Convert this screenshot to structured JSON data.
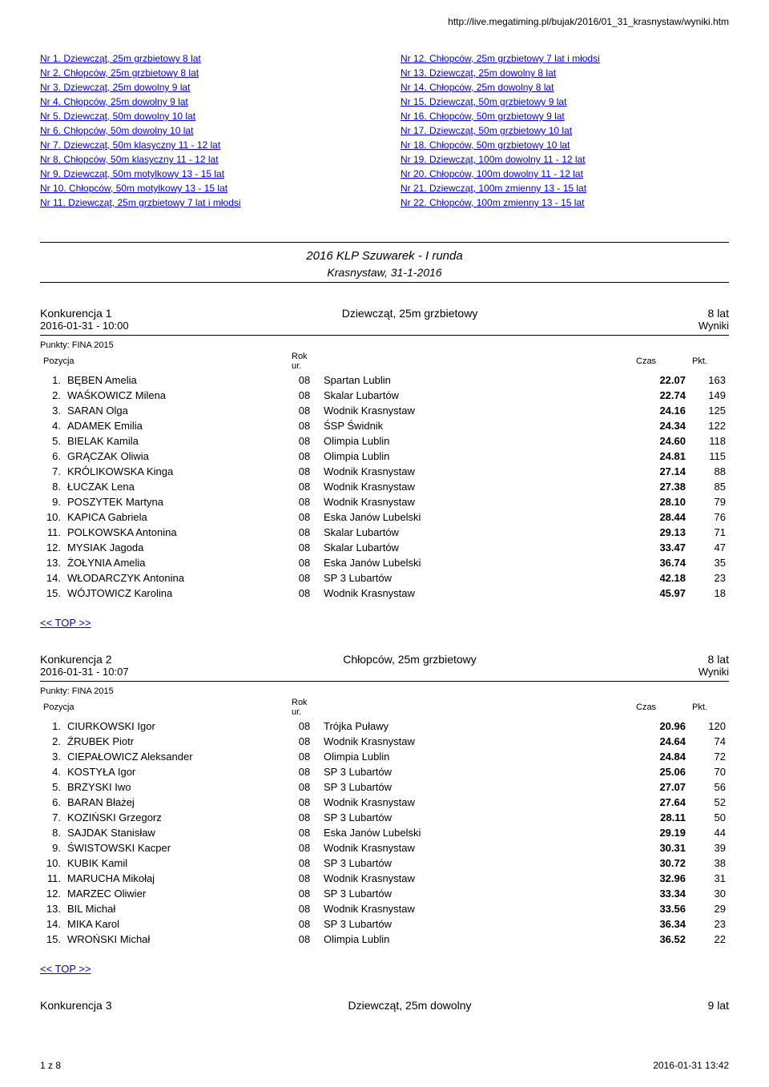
{
  "url": "http://live.megatiming.pl/bujak/2016/01_31_krasnystaw/wyniki.htm",
  "nav_left": [
    "Nr  1. Dziewcząt, 25m grzbietowy  8 lat",
    "Nr  2. Chłopców, 25m grzbietowy  8 lat",
    "Nr  3. Dziewcząt, 25m dowolny  9 lat",
    "Nr  4. Chłopców, 25m dowolny  9 lat",
    "Nr  5. Dziewcząt, 50m dowolny  10 lat",
    "Nr  6. Chłopców, 50m dowolny  10 lat",
    "Nr  7. Dziewcząt, 50m klasyczny  11 - 12 lat",
    "Nr  8. Chłopców, 50m klasyczny  11 - 12 lat",
    "Nr  9. Dziewcząt, 50m motylkowy  13 - 15 lat",
    "Nr 10. Chłopców, 50m motylkowy  13 - 15 lat",
    "Nr 11. Dziewcząt, 25m grzbietowy  7 lat i młodsi"
  ],
  "nav_right": [
    "Nr 12. Chłopców, 25m grzbietowy  7 lat i młodsi",
    "Nr 13. Dziewcząt, 25m dowolny  8 lat",
    "Nr 14. Chłopców, 25m dowolny  8 lat",
    "Nr 15. Dziewcząt, 50m grzbietowy  9 lat",
    "Nr 16. Chłopców, 50m grzbietowy  9 lat",
    "Nr 17. Dziewcząt, 50m grzbietowy  10 lat",
    "Nr 18. Chłopców, 50m grzbietowy  10 lat",
    "Nr 19. Dziewcząt, 100m dowolny  11 - 12 lat",
    "Nr 20. Chłopców, 100m dowolny  11 - 12 lat",
    "Nr 21. Dziewcząt, 100m zmienny  13 - 15 lat",
    "Nr 22. Chłopców, 100m zmienny  13 - 15 lat"
  ],
  "event_title": "2016 KLP Szuwarek - I runda",
  "event_date": "Krasnystaw, 31-1-2016",
  "points_label": "Punkty: FINA 2015",
  "col_pos": "Pozycja",
  "col_year": "Rok ur.",
  "col_time": "Czas",
  "col_pkt": "Pkt.",
  "top_link": "<< TOP >>",
  "k1": {
    "left": "Konkurencja 1",
    "mid": "Dziewcząt, 25m grzbietowy",
    "right": "8 lat",
    "time": "2016-01-31 - 10:00",
    "wyniki": "Wyniki",
    "rows": [
      {
        "pos": "1.",
        "name": "BĘBEN Amelia",
        "year": "08",
        "club": "Spartan Lublin",
        "time": "22.07",
        "pkt": "163"
      },
      {
        "pos": "2.",
        "name": "WAŚKOWICZ Milena",
        "year": "08",
        "club": "Skalar Lubartów",
        "time": "22.74",
        "pkt": "149"
      },
      {
        "pos": "3.",
        "name": "SARAN Olga",
        "year": "08",
        "club": "Wodnik Krasnystaw",
        "time": "24.16",
        "pkt": "125"
      },
      {
        "pos": "4.",
        "name": "ADAMEK Emilia",
        "year": "08",
        "club": "ŚSP Świdnik",
        "time": "24.34",
        "pkt": "122"
      },
      {
        "pos": "5.",
        "name": "BIELAK Kamila",
        "year": "08",
        "club": "Olimpia Lublin",
        "time": "24.60",
        "pkt": "118"
      },
      {
        "pos": "6.",
        "name": "GRĄCZAK Oliwia",
        "year": "08",
        "club": "Olimpia Lublin",
        "time": "24.81",
        "pkt": "115"
      },
      {
        "pos": "7.",
        "name": "KRÓLIKOWSKA Kinga",
        "year": "08",
        "club": "Wodnik Krasnystaw",
        "time": "27.14",
        "pkt": "88"
      },
      {
        "pos": "8.",
        "name": "ŁUCZAK Lena",
        "year": "08",
        "club": "Wodnik Krasnystaw",
        "time": "27.38",
        "pkt": "85"
      },
      {
        "pos": "9.",
        "name": "POSZYTEK Martyna",
        "year": "08",
        "club": "Wodnik Krasnystaw",
        "time": "28.10",
        "pkt": "79"
      },
      {
        "pos": "10.",
        "name": "KAPICA Gabriela",
        "year": "08",
        "club": "Eska Janów Lubelski",
        "time": "28.44",
        "pkt": "76"
      },
      {
        "pos": "11.",
        "name": "POLKOWSKA Antonina",
        "year": "08",
        "club": "Skalar Lubartów",
        "time": "29.13",
        "pkt": "71"
      },
      {
        "pos": "12.",
        "name": "MYSIAK Jagoda",
        "year": "08",
        "club": "Skalar Lubartów",
        "time": "33.47",
        "pkt": "47"
      },
      {
        "pos": "13.",
        "name": "ŻOŁYNIA Amelia",
        "year": "08",
        "club": "Eska Janów Lubelski",
        "time": "36.74",
        "pkt": "35"
      },
      {
        "pos": "14.",
        "name": "WŁODARCZYK Antonina",
        "year": "08",
        "club": "SP 3 Lubartów",
        "time": "42.18",
        "pkt": "23"
      },
      {
        "pos": "15.",
        "name": "WÓJTOWICZ Karolina",
        "year": "08",
        "club": "Wodnik Krasnystaw",
        "time": "45.97",
        "pkt": "18"
      }
    ]
  },
  "k2": {
    "left": "Konkurencja 2",
    "mid": "Chłopców, 25m grzbietowy",
    "right": "8 lat",
    "time": "2016-01-31 - 10:07",
    "wyniki": "Wyniki",
    "rows": [
      {
        "pos": "1.",
        "name": "CIURKOWSKI Igor",
        "year": "08",
        "club": "Trójka Puławy",
        "time": "20.96",
        "pkt": "120"
      },
      {
        "pos": "2.",
        "name": "ŹRUBEK Piotr",
        "year": "08",
        "club": "Wodnik Krasnystaw",
        "time": "24.64",
        "pkt": "74"
      },
      {
        "pos": "3.",
        "name": "CIEPAŁOWICZ Aleksander",
        "year": "08",
        "club": "Olimpia Lublin",
        "time": "24.84",
        "pkt": "72"
      },
      {
        "pos": "4.",
        "name": "KOSTYŁA Igor",
        "year": "08",
        "club": "SP 3 Lubartów",
        "time": "25.06",
        "pkt": "70"
      },
      {
        "pos": "5.",
        "name": "BRZYSKI Iwo",
        "year": "08",
        "club": "SP 3 Lubartów",
        "time": "27.07",
        "pkt": "56"
      },
      {
        "pos": "6.",
        "name": "BARAN Błażej",
        "year": "08",
        "club": "Wodnik Krasnystaw",
        "time": "27.64",
        "pkt": "52"
      },
      {
        "pos": "7.",
        "name": "KOZIŃSKI Grzegorz",
        "year": "08",
        "club": "SP 3 Lubartów",
        "time": "28.11",
        "pkt": "50"
      },
      {
        "pos": "8.",
        "name": "SAJDAK Stanisław",
        "year": "08",
        "club": "Eska Janów Lubelski",
        "time": "29.19",
        "pkt": "44"
      },
      {
        "pos": "9.",
        "name": "ŚWISTOWSKI Kacper",
        "year": "08",
        "club": "Wodnik Krasnystaw",
        "time": "30.31",
        "pkt": "39"
      },
      {
        "pos": "10.",
        "name": "KUBIK Kamil",
        "year": "08",
        "club": "SP 3 Lubartów",
        "time": "30.72",
        "pkt": "38"
      },
      {
        "pos": "11.",
        "name": "MARUCHA Mikołaj",
        "year": "08",
        "club": "Wodnik Krasnystaw",
        "time": "32.96",
        "pkt": "31"
      },
      {
        "pos": "12.",
        "name": "MARZEC Oliwier",
        "year": "08",
        "club": "SP 3 Lubartów",
        "time": "33.34",
        "pkt": "30"
      },
      {
        "pos": "13.",
        "name": "BIL Michał",
        "year": "08",
        "club": "Wodnik Krasnystaw",
        "time": "33.56",
        "pkt": "29"
      },
      {
        "pos": "14.",
        "name": "MIKA Karol",
        "year": "08",
        "club": "SP 3 Lubartów",
        "time": "36.34",
        "pkt": "23"
      },
      {
        "pos": "15.",
        "name": "WROŃSKI Michał",
        "year": "08",
        "club": "Olimpia Lublin",
        "time": "36.52",
        "pkt": "22"
      }
    ]
  },
  "k3": {
    "left": "Konkurencja 3",
    "mid": "Dziewcząt, 25m dowolny",
    "right": "9 lat"
  },
  "footer_left": "1 z 8",
  "footer_right": "2016-01-31 13:42"
}
